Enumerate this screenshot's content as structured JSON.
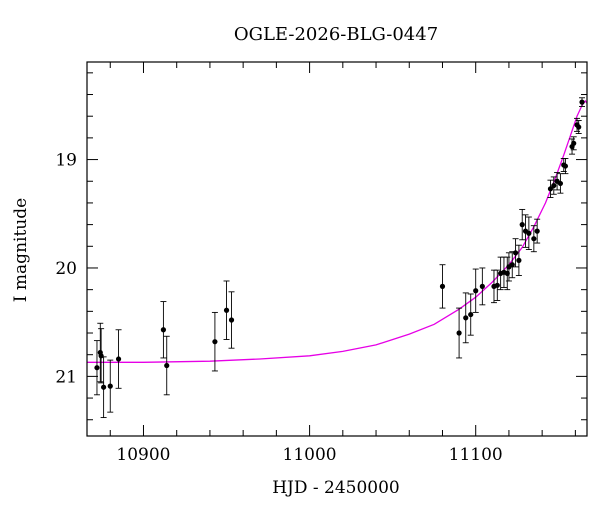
{
  "chart_data": {
    "type": "scatter",
    "title": "OGLE-2026-BLG-0447",
    "xlabel": "HJD - 2450000",
    "ylabel": "I magnitude",
    "xlim": [
      10866,
      11167
    ],
    "ylim": [
      21.55,
      18.1
    ],
    "y_inverted": true,
    "x_ticks": [
      10900,
      11000,
      11100
    ],
    "y_ticks": [
      19,
      20,
      21
    ],
    "x_minor_step": 20,
    "y_minor_step": 0.2,
    "grid": false,
    "colors": {
      "points": "#000000",
      "model": "#e600e6",
      "frame": "#000000"
    },
    "series": [
      {
        "kind": "observations",
        "x": [
          10872,
          10874,
          10874.5,
          10876,
          10880,
          10885,
          10912,
          10914,
          10943,
          10950,
          10953,
          11080,
          11090,
          11094,
          11097,
          11100,
          11104,
          11111,
          11113,
          11115,
          11117,
          11119,
          11120,
          11122,
          11124,
          11126,
          11128,
          11130,
          11132,
          11135,
          11137,
          11145,
          11147,
          11149,
          11151,
          11153,
          11154,
          11158,
          11159,
          11161,
          11162,
          11164
        ],
        "y": [
          20.92,
          20.78,
          20.81,
          21.1,
          21.09,
          20.84,
          20.57,
          20.9,
          20.68,
          20.39,
          20.48,
          20.17,
          20.6,
          20.46,
          20.43,
          20.21,
          20.17,
          20.17,
          20.16,
          20.05,
          20.04,
          20.05,
          19.99,
          19.97,
          19.86,
          19.93,
          19.6,
          19.66,
          19.68,
          19.73,
          19.66,
          19.27,
          19.24,
          19.2,
          19.22,
          19.05,
          19.06,
          18.88,
          18.85,
          18.68,
          18.7,
          18.47
        ],
        "err": [
          0.25,
          0.27,
          0.25,
          0.28,
          0.24,
          0.27,
          0.26,
          0.27,
          0.27,
          0.27,
          0.26,
          0.2,
          0.23,
          0.23,
          0.19,
          0.2,
          0.17,
          0.15,
          0.14,
          0.15,
          0.14,
          0.15,
          0.13,
          0.12,
          0.13,
          0.14,
          0.14,
          0.15,
          0.15,
          0.12,
          0.11,
          0.08,
          0.08,
          0.08,
          0.09,
          0.06,
          0.07,
          0.07,
          0.06,
          0.06,
          0.06,
          0.04
        ]
      },
      {
        "kind": "model",
        "x": [
          10866,
          10900,
          10940,
          10970,
          11000,
          11020,
          11040,
          11060,
          11075,
          11090,
          11100,
          11110,
          11120,
          11128,
          11135,
          11142,
          11148,
          11153,
          11157,
          11161,
          11164,
          11166,
          11167
        ],
        "y": [
          20.87,
          20.87,
          20.86,
          20.84,
          20.81,
          20.77,
          20.71,
          20.61,
          20.52,
          20.38,
          20.27,
          20.13,
          19.97,
          19.81,
          19.62,
          19.4,
          19.17,
          18.96,
          18.78,
          18.6,
          18.5,
          18.46,
          18.48
        ]
      }
    ]
  }
}
